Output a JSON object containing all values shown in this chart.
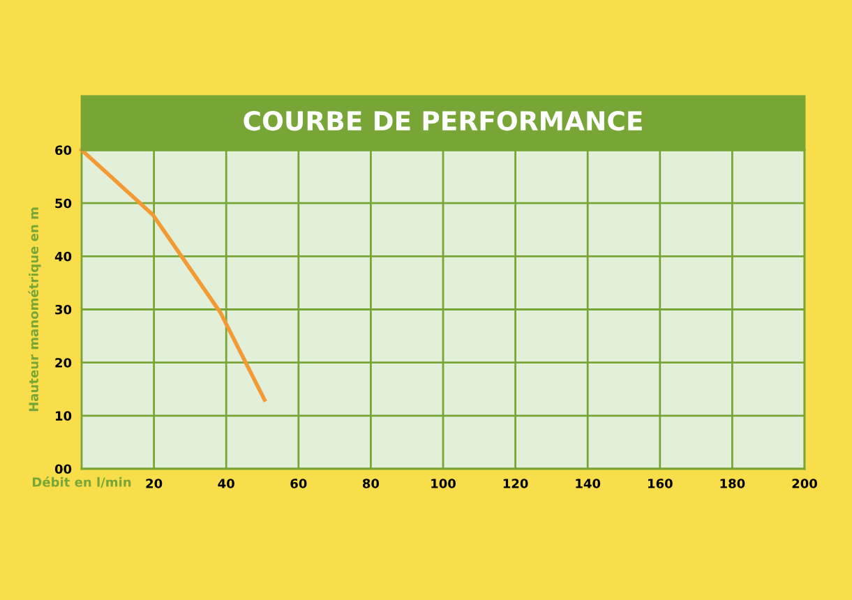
{
  "chart_data": {
    "type": "line",
    "title": "COURBE DE PERFORMANCE",
    "xlabel": "Débit en l/min",
    "ylabel": "Hauteur manométrique en m",
    "x": [
      0,
      19.7,
      38.4,
      50.6
    ],
    "series": [
      {
        "color": "#f39a33",
        "values": [
          60,
          47.8,
          29.4,
          13.0
        ]
      }
    ],
    "xlim": [
      0,
      200
    ],
    "xticks": [
      20,
      40,
      60,
      80,
      100,
      120,
      140,
      160,
      180,
      200
    ],
    "ylim": [
      0,
      60
    ],
    "yticks": [
      {
        "value": 0,
        "label": "00"
      },
      10,
      20,
      30,
      40,
      50,
      60
    ],
    "grid": true,
    "marker": "none",
    "line_style": "solid"
  }
}
